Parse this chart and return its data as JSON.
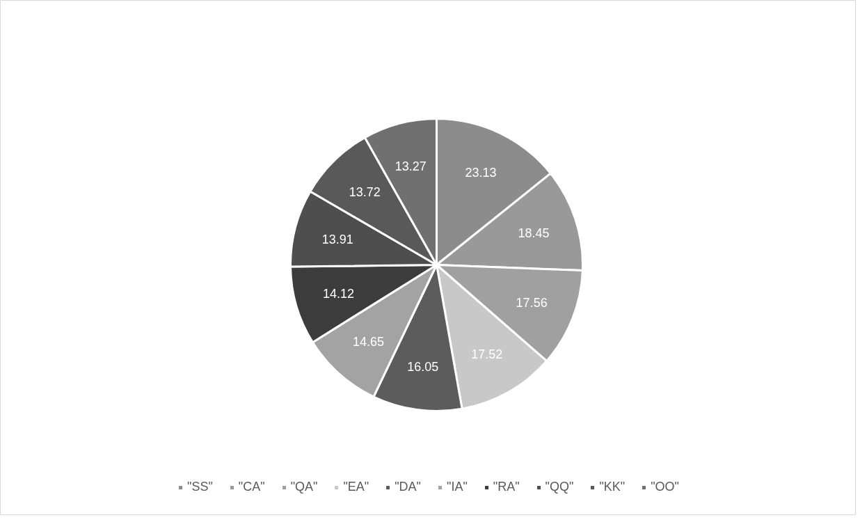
{
  "chart_data": {
    "type": "pie",
    "categories": [
      "\"SS\"",
      "\"CA\"",
      "\"QA\"",
      "\"EA\"",
      "\"DA\"",
      "\"IA\"",
      "\"RA\"",
      "\"QQ\"",
      "\"KK\"",
      "\"OO\""
    ],
    "values": [
      23.13,
      18.45,
      17.56,
      17.52,
      16.05,
      14.65,
      14.12,
      13.91,
      13.72,
      13.27
    ],
    "colors": [
      "#8c8c8c",
      "#999999",
      "#a0a0a0",
      "#c8c8c8",
      "#5c5c5c",
      "#a3a3a3",
      "#3c3c3c",
      "#4e4e4e",
      "#595959",
      "#707070"
    ],
    "data_labels": true,
    "legend": "bottom"
  }
}
